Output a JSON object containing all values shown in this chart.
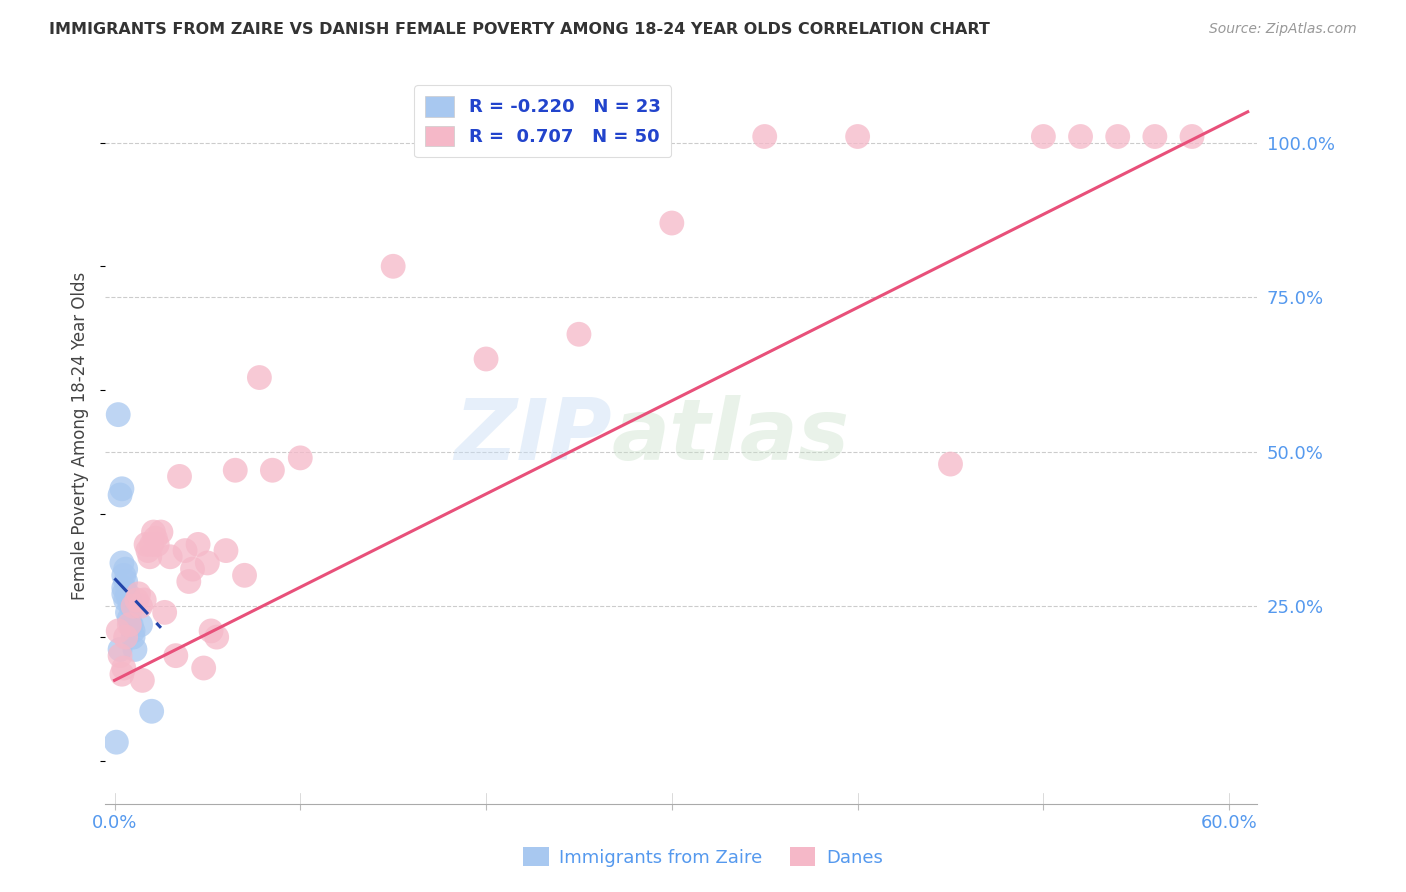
{
  "title": "IMMIGRANTS FROM ZAIRE VS DANISH FEMALE POVERTY AMONG 18-24 YEAR OLDS CORRELATION CHART",
  "source": "Source: ZipAtlas.com",
  "ylabel": "Female Poverty Among 18-24 Year Olds",
  "xlim": [
    -0.005,
    0.615
  ],
  "ylim": [
    -0.07,
    1.12
  ],
  "xtick_positions": [
    0.0,
    0.1,
    0.2,
    0.3,
    0.4,
    0.5,
    0.6
  ],
  "xtick_labels": [
    "0.0%",
    "",
    "",
    "",
    "",
    "",
    "60.0%"
  ],
  "yticks_right": [
    0.25,
    0.5,
    0.75,
    1.0
  ],
  "ytick_right_labels": [
    "25.0%",
    "50.0%",
    "75.0%",
    "100.0%"
  ],
  "legend_r_blue": "-0.220",
  "legend_n_blue": "23",
  "legend_r_pink": "0.707",
  "legend_n_pink": "50",
  "blue_color": "#a8c8f0",
  "pink_color": "#f5b8c8",
  "line_blue_color": "#2244aa",
  "line_pink_color": "#e8507a",
  "watermark_zip": "ZIP",
  "watermark_atlas": "atlas",
  "blue_scatter_x": [
    0.001,
    0.002,
    0.003,
    0.003,
    0.004,
    0.004,
    0.005,
    0.005,
    0.005,
    0.006,
    0.006,
    0.006,
    0.007,
    0.007,
    0.008,
    0.008,
    0.009,
    0.009,
    0.01,
    0.01,
    0.011,
    0.014,
    0.02
  ],
  "blue_scatter_y": [
    0.03,
    0.56,
    0.43,
    0.18,
    0.44,
    0.32,
    0.3,
    0.28,
    0.27,
    0.31,
    0.29,
    0.26,
    0.27,
    0.24,
    0.26,
    0.23,
    0.25,
    0.22,
    0.21,
    0.2,
    0.18,
    0.22,
    0.08
  ],
  "pink_scatter_x": [
    0.002,
    0.003,
    0.004,
    0.005,
    0.006,
    0.008,
    0.01,
    0.012,
    0.013,
    0.014,
    0.015,
    0.016,
    0.017,
    0.018,
    0.019,
    0.02,
    0.021,
    0.022,
    0.023,
    0.025,
    0.027,
    0.03,
    0.033,
    0.035,
    0.038,
    0.04,
    0.042,
    0.045,
    0.048,
    0.05,
    0.052,
    0.055,
    0.06,
    0.065,
    0.07,
    0.078,
    0.085,
    0.1,
    0.15,
    0.2,
    0.25,
    0.3,
    0.35,
    0.4,
    0.45,
    0.5,
    0.52,
    0.54,
    0.56,
    0.58
  ],
  "pink_scatter_y": [
    0.21,
    0.17,
    0.14,
    0.15,
    0.2,
    0.22,
    0.25,
    0.26,
    0.27,
    0.25,
    0.13,
    0.26,
    0.35,
    0.34,
    0.33,
    0.35,
    0.37,
    0.36,
    0.35,
    0.37,
    0.24,
    0.33,
    0.17,
    0.46,
    0.34,
    0.29,
    0.31,
    0.35,
    0.15,
    0.32,
    0.21,
    0.2,
    0.34,
    0.47,
    0.3,
    0.62,
    0.47,
    0.49,
    0.8,
    0.65,
    0.69,
    0.87,
    1.01,
    1.01,
    0.48,
    1.01,
    1.01,
    1.01,
    1.01,
    1.01
  ],
  "pink_line_x0": 0.0,
  "pink_line_y0": 0.13,
  "pink_line_x1": 0.61,
  "pink_line_y1": 1.05,
  "blue_line_x0": 0.0,
  "blue_line_y0": 0.295,
  "blue_line_x1": 0.025,
  "blue_line_y1": 0.215
}
